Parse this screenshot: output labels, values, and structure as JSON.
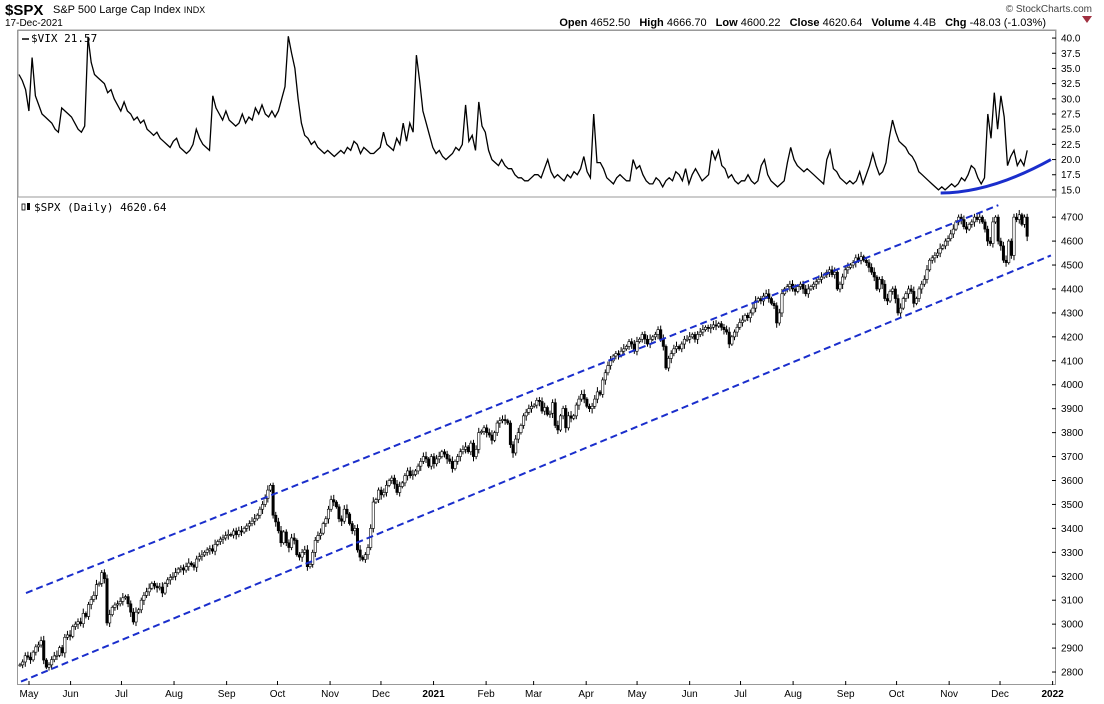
{
  "header": {
    "symbol": "$SPX",
    "name": "S&P 500 Large Cap Index",
    "exchange": "INDX",
    "date": "17-Dec-2021",
    "copyright": "© StockCharts.com",
    "open_label": "Open",
    "open": "4652.50",
    "high_label": "High",
    "high": "4666.70",
    "low_label": "Low",
    "low": "4600.22",
    "close_label": "Close",
    "close": "4620.64",
    "volume_label": "Volume",
    "volume": "4.4B",
    "chg_label": "Chg",
    "chg": "-48.03 (-1.03%)"
  },
  "chart_data": [
    {
      "type": "line",
      "legend": "$VIX 21.57",
      "ylim": [
        14,
        41
      ],
      "yticks": [
        "15.0",
        "17.5",
        "20.0",
        "22.5",
        "25.0",
        "27.5",
        "30.0",
        "32.5",
        "35.0",
        "37.5",
        "40.0"
      ],
      "x_start": "2020-05-01",
      "x_end": "2021-12-17",
      "series": [
        {
          "values": [
            34.0,
            33.0,
            31.5,
            28.0,
            36.8,
            30.5,
            29.0,
            27.5,
            27.0,
            26.5,
            26.0,
            25.0,
            24.5,
            28.5,
            28.0,
            27.5,
            27.0,
            26.0,
            25.0,
            24.5,
            25.5,
            40.2,
            36.0,
            34.0,
            33.5,
            33.0,
            32.5,
            31.0,
            31.5,
            30.0,
            29.0,
            28.0,
            29.5,
            28.0,
            27.5,
            26.5,
            27.0,
            26.0,
            26.5,
            25.0,
            24.5,
            24.0,
            24.5,
            23.5,
            23.0,
            22.5,
            22.0,
            23.0,
            23.5,
            22.0,
            21.5,
            21.0,
            21.5,
            22.5,
            25.0,
            23.5,
            22.5,
            22.0,
            21.5,
            30.5,
            28.5,
            27.5,
            26.5,
            28.0,
            26.5,
            26.0,
            25.5,
            26.0,
            27.5,
            26.0,
            27.0,
            26.5,
            28.5,
            27.5,
            29.0,
            27.5,
            27.0,
            28.0,
            27.0,
            28.0,
            30.0,
            32.0,
            40.3,
            37.5,
            35.0,
            30.0,
            26.0,
            24.0,
            23.5,
            22.5,
            23.0,
            22.0,
            21.5,
            21.0,
            21.5,
            21.0,
            20.5,
            21.0,
            21.5,
            21.0,
            22.0,
            21.5,
            23.0,
            22.5,
            21.0,
            22.0,
            21.5,
            21.0,
            21.0,
            21.5,
            22.0,
            24.5,
            22.5,
            22.0,
            21.5,
            23.5,
            22.5,
            26.0,
            23.0,
            26.0,
            24.5,
            37.2,
            33.0,
            28.0,
            26.0,
            24.0,
            22.0,
            21.0,
            21.5,
            20.5,
            20.0,
            20.5,
            21.0,
            22.0,
            21.5,
            22.5,
            29.0,
            23.0,
            24.0,
            21.5,
            29.5,
            25.5,
            24.5,
            21.5,
            20.0,
            19.5,
            19.0,
            20.0,
            19.0,
            18.5,
            18.5,
            17.5,
            17.0,
            17.0,
            16.5,
            16.5,
            17.0,
            17.5,
            17.5,
            17.0,
            18.5,
            20.0,
            18.0,
            17.0,
            17.5,
            17.0,
            16.5,
            17.5,
            17.0,
            18.0,
            17.5,
            18.5,
            20.5,
            18.0,
            17.0,
            27.5,
            19.5,
            19.5,
            18.5,
            17.0,
            16.5,
            16.0,
            17.0,
            17.5,
            17.0,
            16.5,
            16.5,
            20.0,
            18.5,
            19.0,
            17.5,
            16.5,
            16.0,
            16.0,
            17.0,
            16.5,
            15.5,
            16.5,
            17.0,
            16.5,
            18.0,
            17.5,
            16.5,
            18.5,
            16.0,
            17.5,
            18.5,
            17.5,
            16.5,
            17.0,
            17.5,
            21.5,
            20.0,
            21.5,
            19.0,
            18.5,
            17.0,
            17.5,
            16.5,
            16.0,
            16.5,
            16.5,
            17.5,
            16.5,
            16.0,
            16.5,
            19.0,
            20.0,
            17.5,
            16.5,
            16.0,
            15.5,
            16.0,
            16.5,
            19.5,
            22.0,
            20.0,
            19.0,
            18.5,
            18.0,
            18.5,
            18.0,
            17.5,
            17.0,
            16.5,
            16.0,
            20.0,
            21.5,
            18.5,
            18.0,
            17.0,
            16.5,
            16.0,
            16.5,
            16.0,
            16.5,
            18.0,
            16.0,
            17.5,
            19.0,
            21.0,
            19.0,
            17.5,
            18.0,
            19.5,
            23.5,
            26.5,
            24.5,
            23.0,
            22.5,
            22.0,
            21.0,
            20.5,
            19.5,
            18.0,
            17.5,
            17.0,
            16.5,
            16.0,
            15.5,
            15.0,
            15.5,
            15.0,
            15.5,
            16.0,
            15.5,
            16.0,
            17.0,
            16.5,
            17.5,
            19.0,
            18.5,
            17.0,
            16.0,
            17.0,
            27.5,
            23.5,
            31.0,
            25.0,
            30.5,
            27.0,
            19.0,
            20.5,
            21.5,
            19.0,
            20.0,
            19.0,
            21.5
          ]
        }
      ],
      "annotation": {
        "type": "curve",
        "color": "#1a2ecc",
        "x_from": "2021-10-27",
        "x_to": "2021-12-31",
        "y_from": 14.5,
        "y_to": 20.0
      }
    },
    {
      "type": "candlestick",
      "legend": "$SPX (Daily) 4620.64",
      "ylim": [
        2750,
        4780
      ],
      "yticks": [
        "2800",
        "2900",
        "3000",
        "3100",
        "3200",
        "3300",
        "3400",
        "3500",
        "3600",
        "3700",
        "3800",
        "3900",
        "4000",
        "4100",
        "4200",
        "4300",
        "4400",
        "4500",
        "4600",
        "4700"
      ],
      "xticks": [
        "May",
        "Jun",
        "Jul",
        "Aug",
        "Sep",
        "Oct",
        "Nov",
        "Dec",
        "2021",
        "Feb",
        "Mar",
        "Apr",
        "May",
        "Jun",
        "Jul",
        "Aug",
        "Sep",
        "Oct",
        "Nov",
        "Dec",
        "2022"
      ],
      "x_start": "2020-05-01",
      "x_end": "2021-12-17",
      "closes": [
        2830,
        2842,
        2868,
        2862,
        2851,
        2883,
        2905,
        2913,
        2931,
        2850,
        2820,
        2830,
        2852,
        2867,
        2870,
        2902,
        2880,
        2945,
        2955,
        2949,
        2990,
        3000,
        3010,
        3002,
        3045,
        3032,
        3082,
        3103,
        3120,
        3165,
        3170,
        3215,
        3190,
        3005,
        3040,
        3070,
        3080,
        3085,
        3095,
        3110,
        3115,
        3085,
        3050,
        3009,
        3050,
        3060,
        3100,
        3120,
        3135,
        3150,
        3170,
        3159,
        3152,
        3155,
        3130,
        3169,
        3185,
        3195,
        3200,
        3215,
        3230,
        3235,
        3226,
        3240,
        3255,
        3248,
        3238,
        3272,
        3282,
        3289,
        3300,
        3310,
        3315,
        3305,
        3333,
        3345,
        3355,
        3360,
        3370,
        3375,
        3372,
        3389,
        3374,
        3390,
        3385,
        3400,
        3410,
        3420,
        3430,
        3440,
        3455,
        3480,
        3500,
        3525,
        3560,
        3580,
        3455,
        3427,
        3390,
        3340,
        3385,
        3340,
        3320,
        3360,
        3350,
        3290,
        3280,
        3300,
        3310,
        3240,
        3250,
        3300,
        3350,
        3370,
        3380,
        3420,
        3440,
        3480,
        3520,
        3510,
        3490,
        3440,
        3430,
        3480,
        3460,
        3420,
        3390,
        3400,
        3310,
        3280,
        3270,
        3290,
        3320,
        3400,
        3510,
        3520,
        3560,
        3540,
        3550,
        3580,
        3600,
        3610,
        3585,
        3550,
        3575,
        3590,
        3620,
        3640,
        3620,
        3625,
        3640,
        3660,
        3680,
        3700,
        3690,
        3660,
        3700,
        3670,
        3690,
        3700,
        3720,
        3710,
        3690,
        3680,
        3650,
        3680,
        3700,
        3720,
        3730,
        3740,
        3720,
        3756,
        3700,
        3730,
        3800,
        3805,
        3820,
        3800,
        3790,
        3768,
        3800,
        3840,
        3850,
        3855,
        3850,
        3840,
        3750,
        3715,
        3773,
        3800,
        3830,
        3870,
        3885,
        3900,
        3910,
        3915,
        3935,
        3930,
        3890,
        3905,
        3876,
        3881,
        3925,
        3830,
        3811,
        3870,
        3901,
        3820,
        3870,
        3860,
        3870,
        3915,
        3940,
        3960,
        3940,
        3910,
        3900,
        3910,
        3940,
        3970,
        3960,
        4020,
        4050,
        4080,
        4100,
        4120,
        4130,
        4125,
        4140,
        4150,
        4160,
        4180,
        4170,
        4140,
        4180,
        4190,
        4210,
        4190,
        4170,
        4190,
        4200,
        4210,
        4230,
        4190,
        4160,
        4070,
        4110,
        4130,
        4150,
        4160,
        4150,
        4170,
        4190,
        4190,
        4200,
        4210,
        4190,
        4210,
        4220,
        4230,
        4240,
        4235,
        4240,
        4250,
        4245,
        4255,
        4240,
        4230,
        4220,
        4170,
        4200,
        4220,
        4240,
        4260,
        4270,
        4290,
        4280,
        4300,
        4320,
        4350,
        4360,
        4350,
        4370,
        4380,
        4360,
        4340,
        4330,
        4258,
        4300,
        4380,
        4400,
        4410,
        4420,
        4400,
        4390,
        4410,
        4420,
        4400,
        4380,
        4400,
        4410,
        4420,
        4430,
        4440,
        4450,
        4460,
        4470,
        4480,
        4460,
        4470,
        4400,
        4420,
        4450,
        4480,
        4490,
        4500,
        4510,
        4530,
        4520,
        4535,
        4520,
        4510,
        4490,
        4470,
        4450,
        4400,
        4440,
        4420,
        4360,
        4350,
        4390,
        4400,
        4360,
        4300,
        4320,
        4360,
        4380,
        4400,
        4390,
        4340,
        4360,
        4400,
        4420,
        4440,
        4480,
        4520,
        4530,
        4540,
        4550,
        4570,
        4580,
        4600,
        4610,
        4630,
        4650,
        4680,
        4700,
        4690,
        4660,
        4650,
        4670,
        4680,
        4700,
        4690,
        4700,
        4680,
        4650,
        4600,
        4590,
        4680,
        4700,
        4600,
        4580,
        4520,
        4510,
        4600,
        4540,
        4700,
        4690,
        4710,
        4670,
        4700,
        4620
      ]
    }
  ],
  "channel": {
    "color": "#1a2ecc",
    "upper": {
      "x_from": "2020-05-01",
      "y_from": 3130,
      "x_to": "2021-11-30",
      "y_to": 4750
    },
    "lower": {
      "x_from": "2020-05-01",
      "y_from": 2760,
      "x_to": "2021-12-31",
      "y_to": 4540
    }
  }
}
